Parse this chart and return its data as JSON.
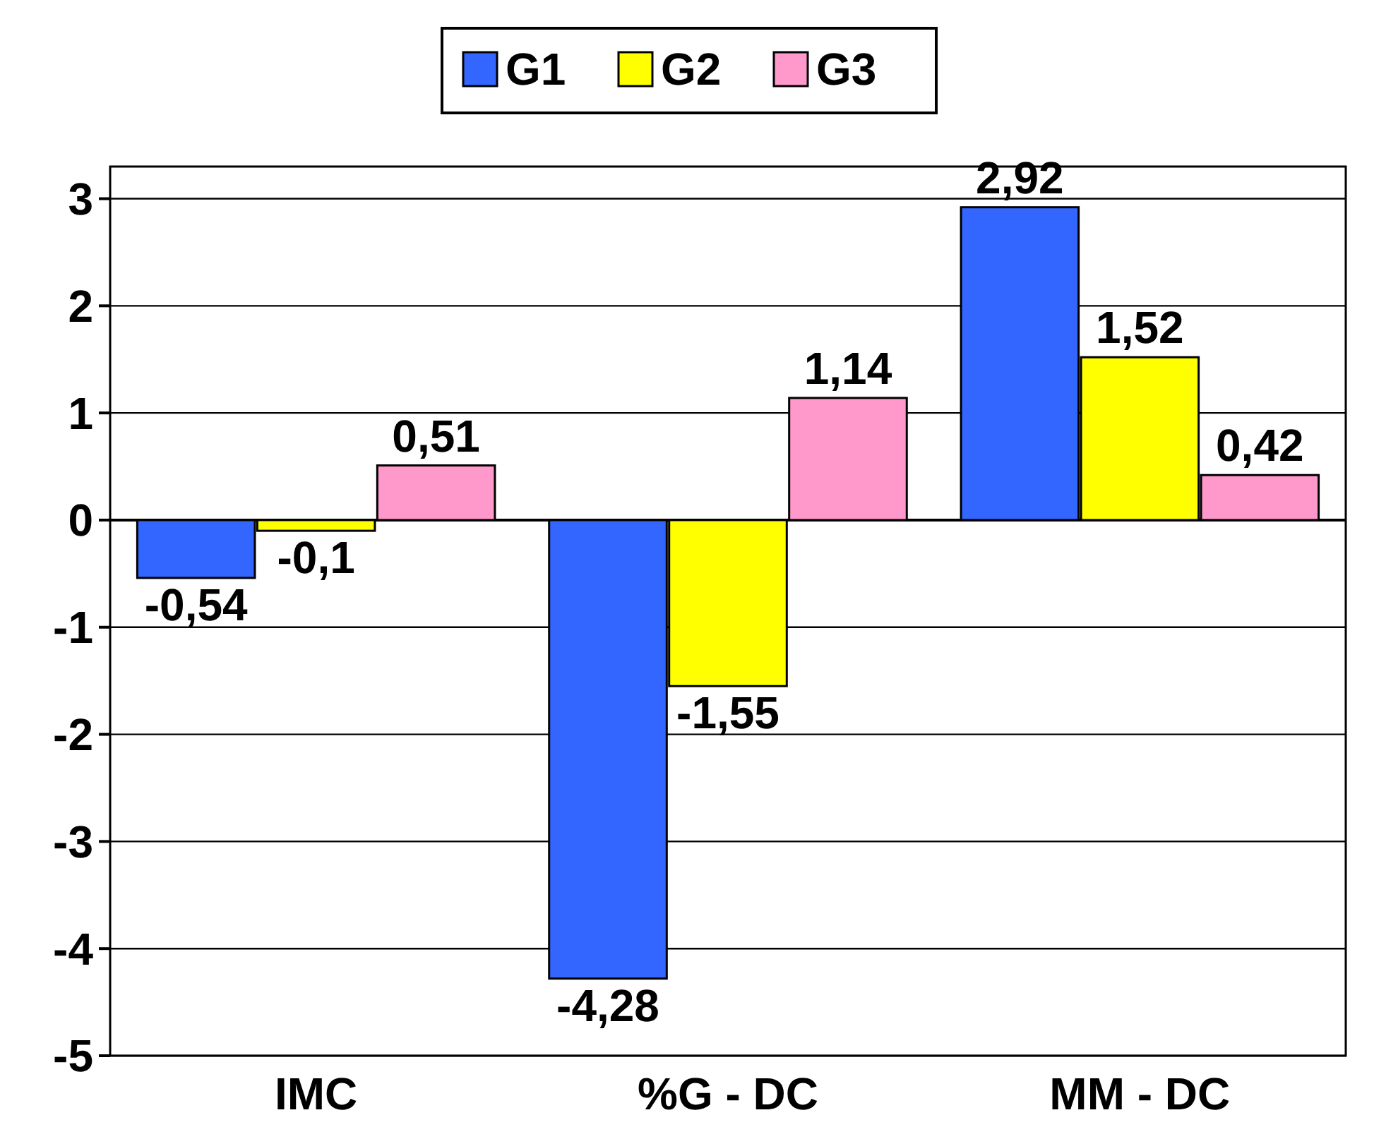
{
  "chart_data": {
    "type": "bar",
    "categories": [
      "IMC",
      "%G - DC",
      "MM - DC"
    ],
    "series": [
      {
        "name": "G1",
        "color": "#3366ff",
        "values": [
          -0.54,
          -4.28,
          2.92
        ],
        "value_labels": [
          "-0,54",
          "-4,28",
          "2,92"
        ]
      },
      {
        "name": "G2",
        "color": "#ffff00",
        "values": [
          -0.1,
          -1.55,
          1.52
        ],
        "value_labels": [
          "-0,1",
          "-1,55",
          "1,52"
        ]
      },
      {
        "name": "G3",
        "color": "#ff99cc",
        "values": [
          0.51,
          1.14,
          0.42
        ],
        "value_labels": [
          "0,51",
          "1,14",
          "0,42"
        ]
      }
    ],
    "ylim": [
      -5,
      3.3
    ],
    "yticks": [
      -5,
      -4,
      -3,
      -2,
      -1,
      0,
      1,
      2,
      3
    ],
    "grid": "y",
    "legend": "top"
  }
}
